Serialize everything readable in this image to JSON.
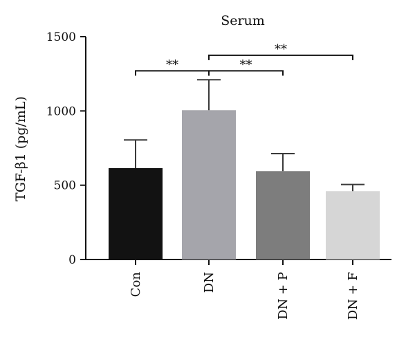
{
  "chart_data": {
    "type": "bar",
    "title": "Serum",
    "ylabel": "TGF-β1 (pg/mL)",
    "xlabel": "",
    "ylim": [
      0,
      1500
    ],
    "yticks": [
      0,
      500,
      1000,
      1500
    ],
    "categories": [
      "Con",
      "DN",
      "DN + P",
      "DN + F"
    ],
    "values": [
      615,
      1005,
      595,
      460
    ],
    "errors": [
      190,
      205,
      118,
      45
    ],
    "colors": [
      "#121212",
      "#a5a5ab",
      "#7d7d7d",
      "#d6d6d6"
    ],
    "significance": [
      {
        "from": 0,
        "to": 1,
        "label": "**",
        "y": 1270
      },
      {
        "from": 1,
        "to": 2,
        "label": "**",
        "y": 1270
      },
      {
        "from": 1,
        "to": 3,
        "label": "**",
        "y": 1375
      }
    ]
  }
}
